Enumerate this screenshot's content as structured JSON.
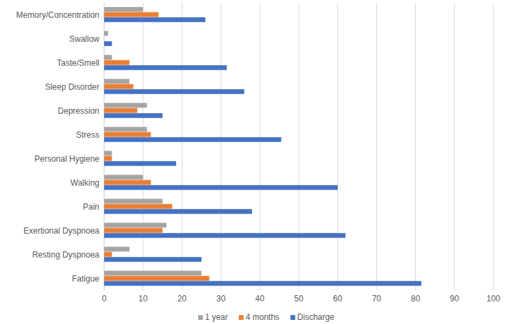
{
  "chart_data": {
    "type": "bar",
    "orientation": "horizontal",
    "categories": [
      "Memory/Concentration",
      "Swallow",
      "Taste/Smell",
      "Sleep Disorder",
      "Depression",
      "Stress",
      "Personal Hygiene",
      "Walking",
      "Pain",
      "Exertional Dyspnoea",
      "Resting Dyspnoea",
      "Fatigue"
    ],
    "series": [
      {
        "name": "1 year",
        "color": "#a5a5a5",
        "values": [
          10,
          1,
          2,
          6.5,
          11,
          11,
          2,
          10,
          15,
          16,
          6.5,
          25
        ]
      },
      {
        "name": "4 months",
        "color": "#ed7d31",
        "values": [
          14,
          0,
          6.5,
          7.5,
          8.5,
          12,
          2,
          12,
          17.5,
          15,
          2,
          27
        ]
      },
      {
        "name": "Discharge",
        "color": "#4472c4",
        "values": [
          26,
          2,
          31.5,
          36,
          15,
          45.5,
          18.5,
          60,
          38,
          62,
          25,
          81.5
        ]
      }
    ],
    "xlim": [
      0,
      100
    ],
    "xticks": [
      0,
      10,
      20,
      30,
      40,
      50,
      60,
      70,
      80,
      90,
      100
    ],
    "grid": true,
    "legend": "bottom"
  }
}
